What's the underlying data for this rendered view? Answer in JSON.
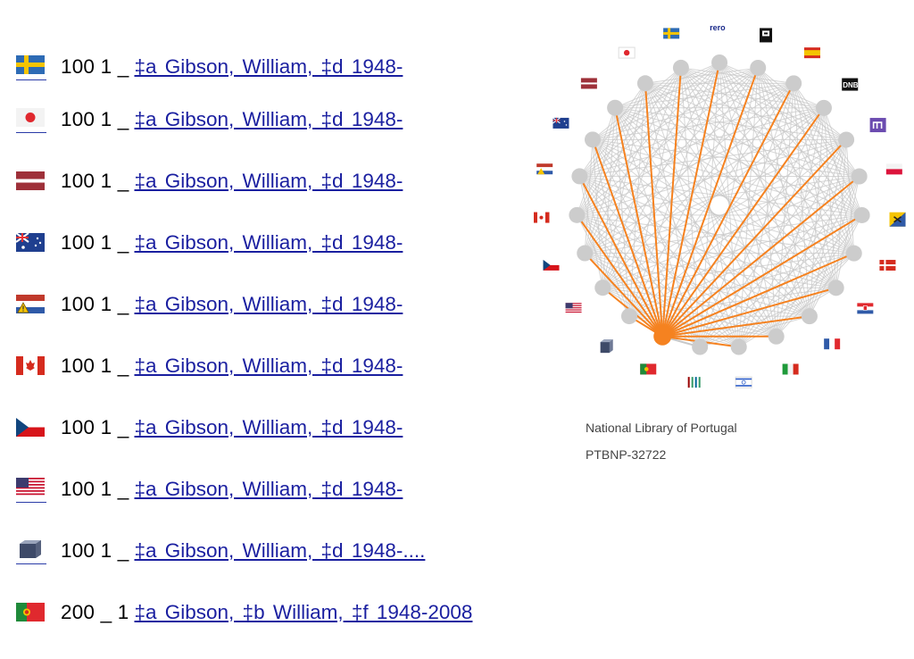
{
  "records": [
    {
      "flag": "se-flag-icon",
      "tag": "100 1 _",
      "text": "‡a  Gibson, William, ‡d  1948-",
      "linked": true
    },
    {
      "flag": "jp-flag-icon",
      "tag": "100 1 _",
      "text": "‡a  Gibson, William, ‡d  1948-",
      "linked": true
    },
    {
      "flag": "lv-flag-icon",
      "tag": "100 1 _",
      "text": "‡a  Gibson, William, ‡d  1948-",
      "linked": false
    },
    {
      "flag": "au-flag-icon",
      "tag": "100 1 _",
      "text": "‡a  Gibson, William, ‡d  1948-",
      "linked": false
    },
    {
      "flag": "nl-warning-flag-icon",
      "tag": "100 1 _",
      "text": "‡a  Gibson, William, ‡d  1948-",
      "linked": false
    },
    {
      "flag": "ca-flag-icon",
      "tag": "100 1 _",
      "text": "‡a  Gibson, William, ‡d  1948-",
      "linked": false
    },
    {
      "flag": "cz-flag-icon",
      "tag": "100 1 _",
      "text": "‡a  Gibson, William, ‡d  1948-",
      "linked": false
    },
    {
      "flag": "us-flag-icon",
      "tag": "100 1 _",
      "text": "‡a  Gibson, William, ‡d  1948-",
      "linked": true
    },
    {
      "flag": "isni-cube-icon",
      "tag": "100 1 _",
      "text": "‡a  Gibson, William, ‡d  1948-....",
      "linked": true
    },
    {
      "flag": "pt-flag-icon",
      "tag": "200 _ 1",
      "text": "‡a  Gibson, ‡b  William, ‡f  1948-2008",
      "linked": false
    }
  ],
  "graph": {
    "nodes": [
      {
        "id": "pt",
        "icon": "pt-flag-icon",
        "highlighted": true
      },
      {
        "id": "wkp",
        "icon": "wikidata-icon"
      },
      {
        "id": "il",
        "icon": "il-flag-icon"
      },
      {
        "id": "it",
        "icon": "it-flag-icon"
      },
      {
        "id": "fr",
        "icon": "fr-flag-icon"
      },
      {
        "id": "hr",
        "icon": "hr-flag-icon"
      },
      {
        "id": "dk",
        "icon": "dk-flag-icon"
      },
      {
        "id": "bnc",
        "icon": "catalonia-star-icon"
      },
      {
        "id": "pl",
        "icon": "pl-flag-icon"
      },
      {
        "id": "nukat",
        "icon": "nukat-icon"
      },
      {
        "id": "dnb",
        "icon": "dnb-logo-icon"
      },
      {
        "id": "es",
        "icon": "es-flag-icon"
      },
      {
        "id": "bnf",
        "icon": "bnf-logo-icon"
      },
      {
        "id": "rero",
        "icon": "rero-logo-icon"
      },
      {
        "id": "se",
        "icon": "se-flag-icon"
      },
      {
        "id": "jp",
        "icon": "jp-flag-icon"
      },
      {
        "id": "lv",
        "icon": "lv-flag-icon"
      },
      {
        "id": "au",
        "icon": "au-flag-icon"
      },
      {
        "id": "nl",
        "icon": "nl-warning-flag-icon"
      },
      {
        "id": "ca",
        "icon": "ca-flag-icon"
      },
      {
        "id": "cz",
        "icon": "cz-flag-icon"
      },
      {
        "id": "us",
        "icon": "us-flag-icon"
      },
      {
        "id": "isni",
        "icon": "isni-cube-icon"
      }
    ],
    "rero_label": "rero",
    "dnb_label": "DNB",
    "highlight_color": "#f58220",
    "node_color": "#cccccc",
    "edge_color": "#c8c8c8"
  },
  "info": {
    "name": "National Library of Portugal",
    "id": "PTBNP-32722"
  }
}
